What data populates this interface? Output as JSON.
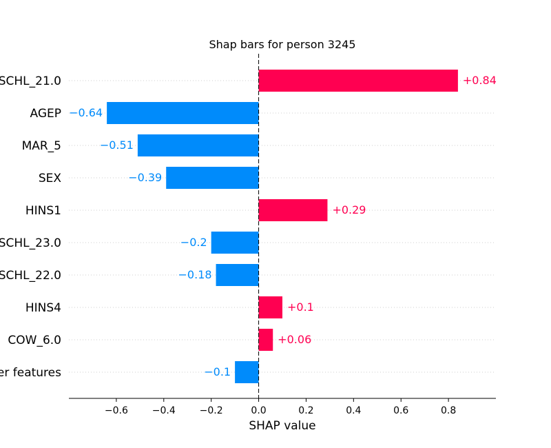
{
  "chart_data": {
    "type": "bar",
    "orientation": "horizontal",
    "title": "Shap bars for person 3245",
    "xlabel": "SHAP value",
    "xticks": [
      -0.6,
      -0.4,
      -0.2,
      0.0,
      0.2,
      0.4,
      0.6,
      0.8
    ],
    "xtick_labels": [
      "−0.6",
      "−0.4",
      "−0.2",
      "0.0",
      "0.2",
      "0.4",
      "0.6",
      "0.8"
    ],
    "xlim": [
      -0.8,
      1.0
    ],
    "features": [
      "SCHL_21.0",
      "AGEP",
      "MAR_5",
      "SEX",
      "HINS1",
      "SCHL_23.0",
      "SCHL_22.0",
      "HINS4",
      "COW_6.0",
      "er features"
    ],
    "values": [
      0.84,
      -0.64,
      -0.51,
      -0.39,
      0.29,
      -0.2,
      -0.18,
      0.1,
      0.06,
      -0.1
    ],
    "value_labels": [
      "+0.84",
      "−0.64",
      "−0.51",
      "−0.39",
      "+0.29",
      "−0.2",
      "−0.18",
      "+0.1",
      "+0.06",
      "−0.1"
    ],
    "colors": {
      "positive": "#ff0051",
      "negative": "#008bfb"
    },
    "grid": "dotted horizontal guides"
  }
}
